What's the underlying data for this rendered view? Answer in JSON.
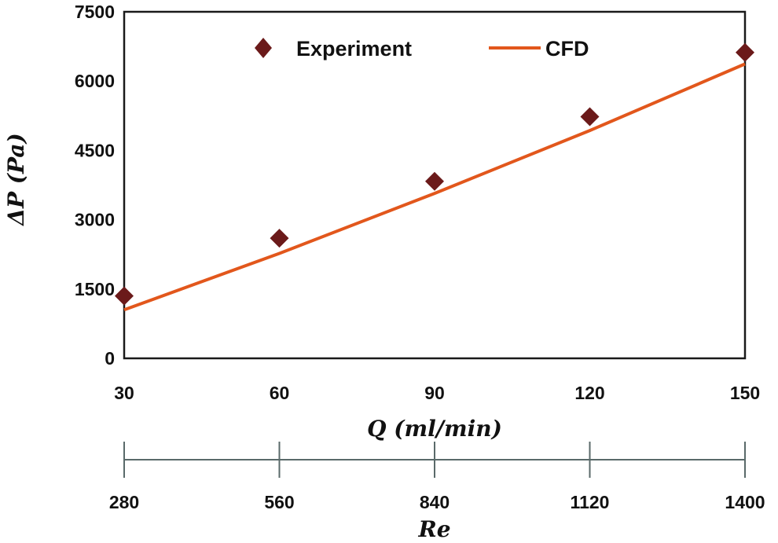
{
  "chart_data": {
    "type": "scatter+line",
    "ylabel": "ΔP (Pa)",
    "xlabel": "Q (ml/min)",
    "x2label": "Re",
    "ylim": [
      0,
      7500
    ],
    "yticks": [
      0,
      1500,
      3000,
      4500,
      6000,
      7500
    ],
    "xlim": [
      30,
      150
    ],
    "xticks": [
      30,
      60,
      90,
      120,
      150
    ],
    "x2ticks": [
      "280",
      "560",
      "840",
      "1120",
      "1400"
    ],
    "grid": false,
    "legend_position": "top",
    "series": [
      {
        "name": "Experiment",
        "kind": "scatter",
        "marker": "diamond",
        "color": "#6b1a1a",
        "x": [
          30,
          60,
          90,
          120,
          150
        ],
        "y": [
          1350,
          2600,
          3830,
          5230,
          6620
        ]
      },
      {
        "name": "CFD",
        "kind": "line",
        "color": "#e2571c",
        "x": [
          30,
          60,
          90,
          120,
          150
        ],
        "y": [
          1050,
          2270,
          3570,
          4930,
          6370
        ]
      }
    ]
  }
}
